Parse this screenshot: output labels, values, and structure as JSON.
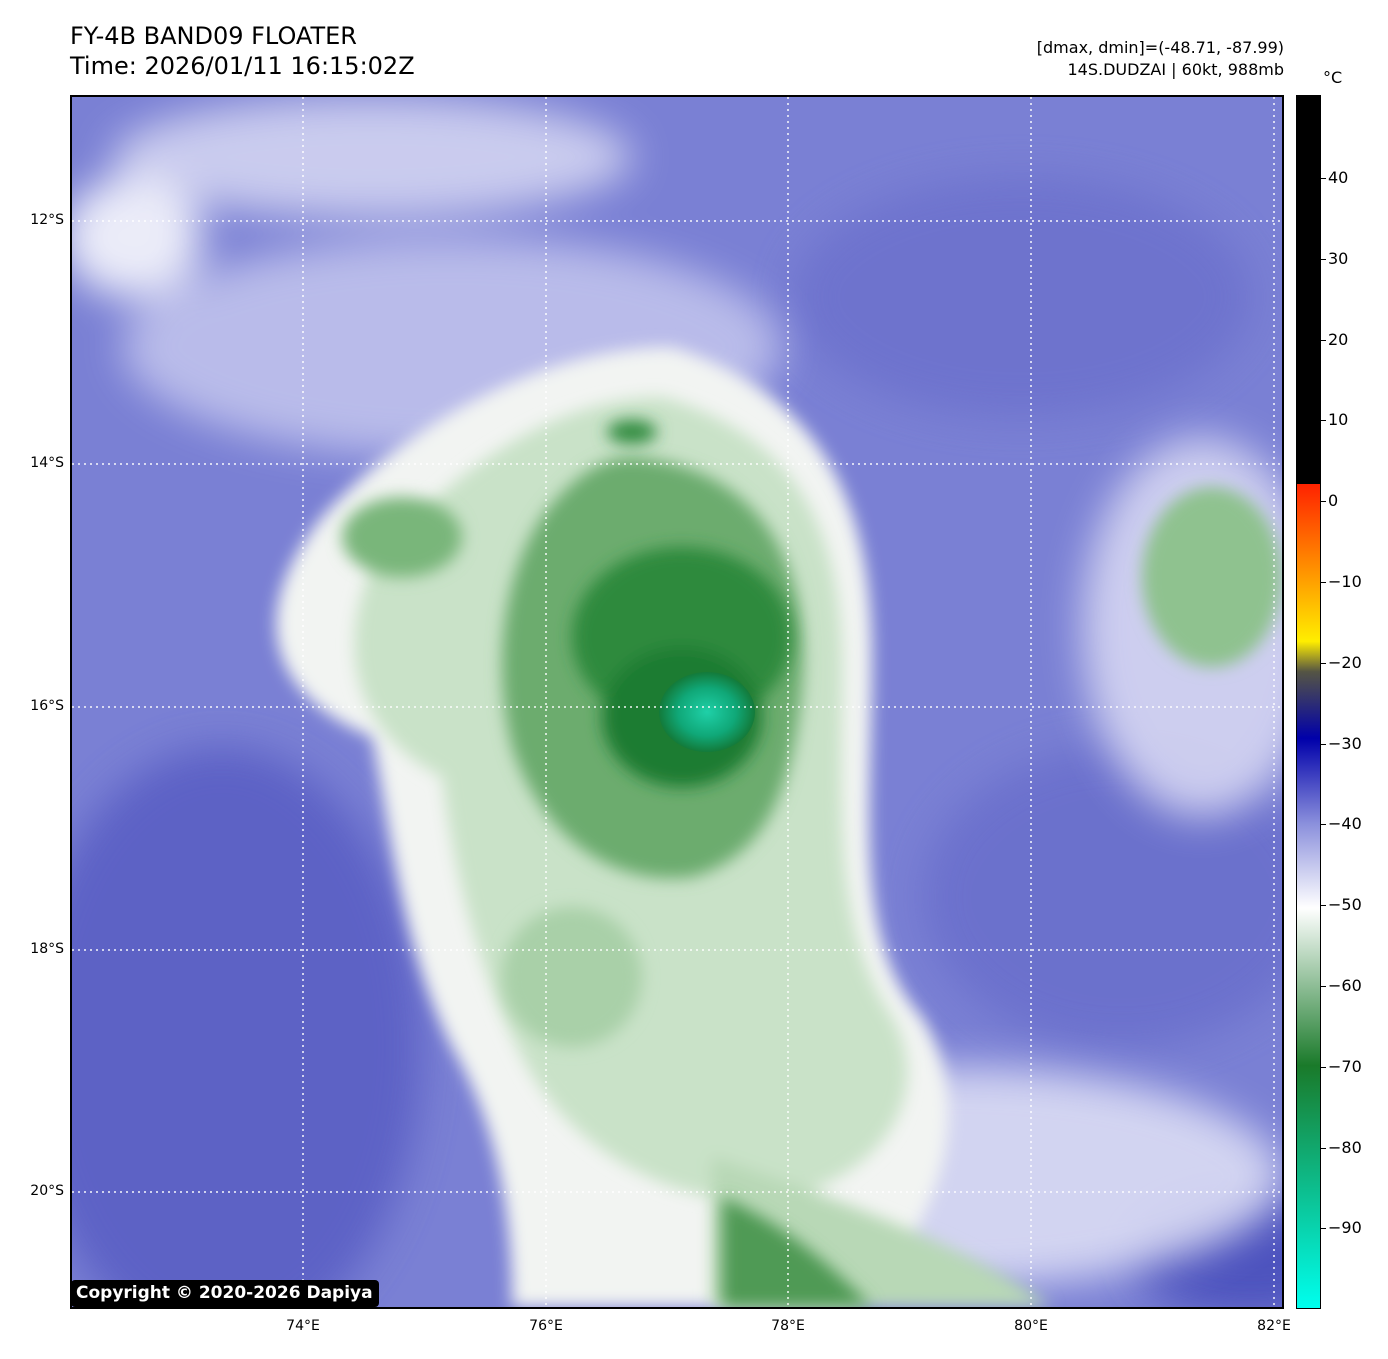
{
  "header": {
    "title_line1": "FY-4B BAND09 FLOATER",
    "title_line2": "Time: 2026/01/11 16:15:02Z",
    "range_text": "[dmax, dmin]=(-48.71, -87.99)",
    "storm_text": "14S.DUDZAI | 60kt, 988mb"
  },
  "map": {
    "lat_labels": [
      "12°S",
      "14°S",
      "16°S",
      "18°S",
      "20°S"
    ],
    "lon_labels": [
      "74°E",
      "76°E",
      "78°E",
      "80°E",
      "82°E"
    ],
    "copyright": "Copyright © 2020-2026 Dapiya",
    "colors": {
      "background_blue": "#7d82d6",
      "cloud_green": "#2e8b3e",
      "eye_cyan": "#1fc9a5"
    }
  },
  "colorbar": {
    "unit": "°C",
    "ticks": [
      "40",
      "30",
      "20",
      "10",
      "0",
      "−10",
      "−20",
      "−30",
      "−40",
      "−50",
      "−60",
      "−70",
      "−80",
      "−90"
    ],
    "colors": [
      "#000000",
      "#ff2200",
      "#ffee00",
      "#555544",
      "#0000aa",
      "#8a8fdc",
      "#ffffff",
      "#1a7a2a",
      "#00ffee"
    ]
  }
}
